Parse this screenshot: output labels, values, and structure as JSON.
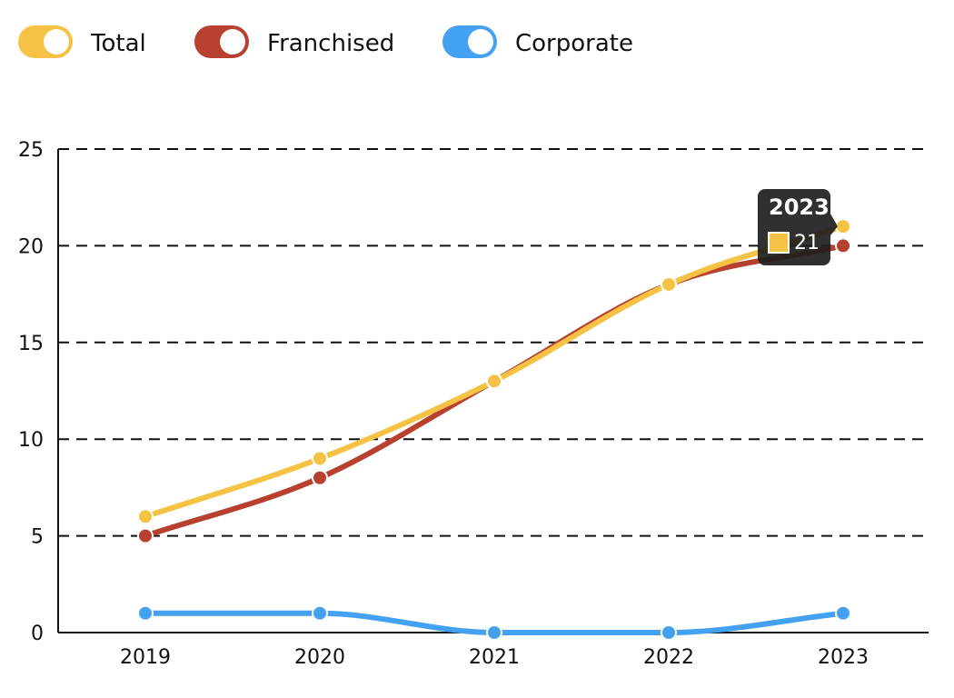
{
  "chart_data": {
    "type": "line",
    "categories": [
      "2019",
      "2020",
      "2021",
      "2022",
      "2023"
    ],
    "series": [
      {
        "name": "Total",
        "color": "#F5C244",
        "values": [
          6,
          9,
          13,
          18,
          21
        ]
      },
      {
        "name": "Franchised",
        "color": "#B8402E",
        "values": [
          5,
          8,
          13,
          18,
          20
        ]
      },
      {
        "name": "Corporate",
        "color": "#44A1F1",
        "values": [
          1,
          1,
          0,
          0,
          1
        ]
      }
    ],
    "ylim": [
      0,
      25
    ],
    "yticks": [
      0,
      5,
      10,
      15,
      20,
      25
    ],
    "grid": "horizontal dashed",
    "legend": "top-left",
    "smooth": true,
    "tooltip": {
      "title": "2023",
      "series": "Total",
      "value": "21",
      "color": "#F5C244"
    }
  }
}
